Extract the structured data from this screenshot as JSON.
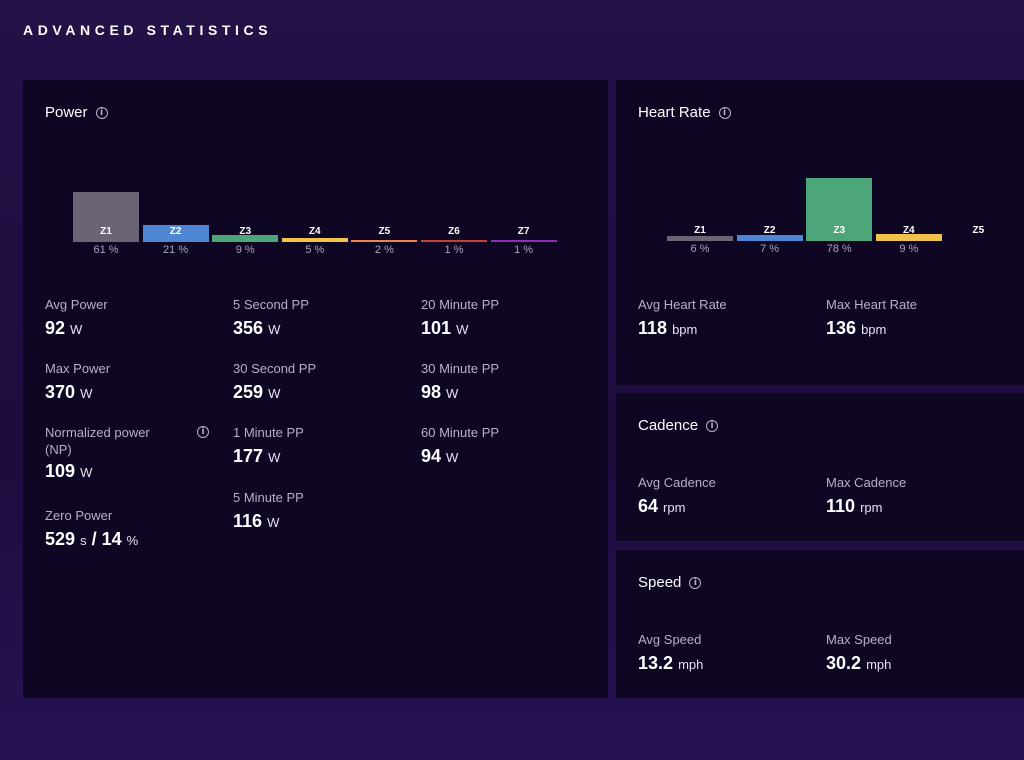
{
  "page": {
    "title": "ADVANCED STATISTICS"
  },
  "power": {
    "title": "Power",
    "zones": [
      {
        "label": "Z1",
        "pct": "61 %",
        "value": 61,
        "color": "#6b6475"
      },
      {
        "label": "Z2",
        "pct": "21 %",
        "value": 21,
        "color": "#4f86d3"
      },
      {
        "label": "Z3",
        "pct": "9 %",
        "value": 9,
        "color": "#4da57a"
      },
      {
        "label": "Z4",
        "pct": "5 %",
        "value": 5,
        "color": "#f0c24b"
      },
      {
        "label": "Z5",
        "pct": "2 %",
        "value": 2,
        "color": "#e8864a"
      },
      {
        "label": "Z6",
        "pct": "1 %",
        "value": 1,
        "color": "#c4403c"
      },
      {
        "label": "Z7",
        "pct": "1 %",
        "value": 1,
        "color": "#8b2fb0"
      }
    ],
    "stats": {
      "avg_power": {
        "label": "Avg Power",
        "value": "92",
        "unit": "W"
      },
      "max_power": {
        "label": "Max Power",
        "value": "370",
        "unit": "W"
      },
      "np": {
        "label": "Normalized power (NP)",
        "value": "109",
        "unit": "W"
      },
      "zero_power": {
        "label": "Zero Power",
        "value1": "529",
        "unit1": "s",
        "sep": "/",
        "value2": "14",
        "unit2": "%"
      },
      "pp5s": {
        "label": "5 Second PP",
        "value": "356",
        "unit": "W"
      },
      "pp30s": {
        "label": "30 Second PP",
        "value": "259",
        "unit": "W"
      },
      "pp1m": {
        "label": "1 Minute PP",
        "value": "177",
        "unit": "W"
      },
      "pp5m": {
        "label": "5 Minute PP",
        "value": "116",
        "unit": "W"
      },
      "pp20m": {
        "label": "20 Minute PP",
        "value": "101",
        "unit": "W"
      },
      "pp30m": {
        "label": "30 Minute PP",
        "value": "98",
        "unit": "W"
      },
      "pp60m": {
        "label": "60 Minute PP",
        "value": "94",
        "unit": "W"
      }
    }
  },
  "heart_rate": {
    "title": "Heart Rate",
    "zones": [
      {
        "label": "Z1",
        "pct": "6 %",
        "value": 6,
        "color": "#6b6475"
      },
      {
        "label": "Z2",
        "pct": "7 %",
        "value": 7,
        "color": "#4f86d3"
      },
      {
        "label": "Z3",
        "pct": "78 %",
        "value": 78,
        "color": "#4da57a"
      },
      {
        "label": "Z4",
        "pct": "9 %",
        "value": 9,
        "color": "#f0c24b"
      },
      {
        "label": "Z5",
        "pct": "",
        "value": 0,
        "color": "#e8864a"
      }
    ],
    "stats": {
      "avg": {
        "label": "Avg Heart Rate",
        "value": "118",
        "unit": "bpm"
      },
      "max": {
        "label": "Max Heart Rate",
        "value": "136",
        "unit": "bpm"
      }
    }
  },
  "cadence": {
    "title": "Cadence",
    "stats": {
      "avg": {
        "label": "Avg Cadence",
        "value": "64",
        "unit": "rpm"
      },
      "max": {
        "label": "Max Cadence",
        "value": "110",
        "unit": "rpm"
      }
    }
  },
  "speed": {
    "title": "Speed",
    "stats": {
      "avg": {
        "label": "Avg Speed",
        "value": "13.2",
        "unit": "mph"
      },
      "max": {
        "label": "Max Speed",
        "value": "30.2",
        "unit": "mph"
      }
    }
  }
}
